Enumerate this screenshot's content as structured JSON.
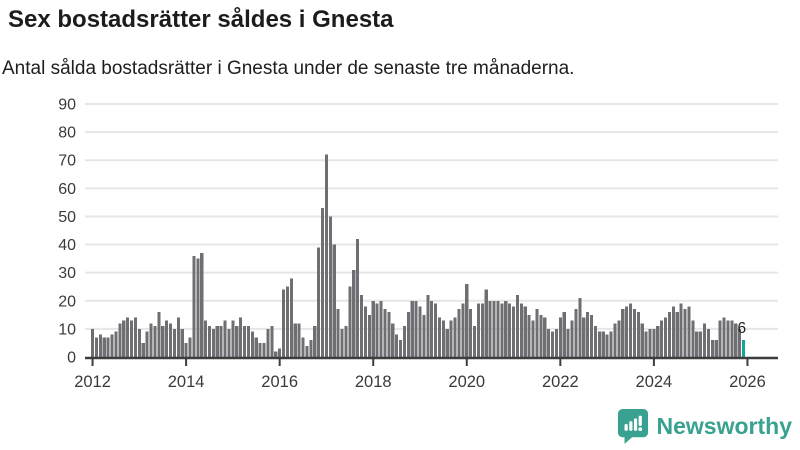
{
  "header": {
    "title": "Sex bostadsrätter såldes i Gnesta",
    "subtitle": "Antal sålda bostadsrätter i Gnesta under de senaste tre månaderna."
  },
  "chart_data": {
    "type": "bar",
    "title": "Sex bostadsrätter såldes i Gnesta",
    "subtitle": "Antal sålda bostadsrätter i Gnesta under de senaste tre månaderna.",
    "frequency": "monthly",
    "x_start": "2012-01",
    "x_end": "2025-12",
    "x_tick_labels": [
      "2012",
      "2014",
      "2016",
      "2018",
      "2020",
      "2022",
      "2024",
      "2026"
    ],
    "y_ticks": [
      0,
      10,
      20,
      30,
      40,
      50,
      60,
      70,
      80,
      90
    ],
    "ylim": [
      0,
      90
    ],
    "grid": true,
    "values": [
      10,
      7,
      8,
      7,
      7,
      8,
      9,
      12,
      13,
      14,
      13,
      14,
      10,
      5,
      9,
      12,
      11,
      16,
      11,
      13,
      12,
      10,
      14,
      10,
      5,
      7,
      36,
      35,
      37,
      13,
      11,
      10,
      11,
      11,
      13,
      10,
      13,
      11,
      14,
      11,
      11,
      9,
      7,
      5,
      5,
      10,
      11,
      2,
      3,
      24,
      25,
      28,
      12,
      12,
      7,
      4,
      6,
      11,
      39,
      53,
      72,
      50,
      40,
      17,
      10,
      11,
      25,
      31,
      42,
      22,
      18,
      15,
      20,
      19,
      20,
      17,
      16,
      12,
      8,
      6,
      11,
      16,
      20,
      20,
      18,
      15,
      22,
      20,
      19,
      14,
      13,
      10,
      13,
      14,
      17,
      19,
      26,
      17,
      11,
      19,
      19,
      24,
      20,
      20,
      20,
      19,
      20,
      19,
      18,
      22,
      19,
      18,
      15,
      13,
      17,
      15,
      14,
      10,
      9,
      10,
      14,
      16,
      10,
      13,
      17,
      21,
      14,
      16,
      15,
      11,
      9,
      9,
      8,
      9,
      12,
      13,
      17,
      18,
      19,
      17,
      16,
      12,
      9,
      10,
      10,
      11,
      13,
      14,
      16,
      18,
      16,
      19,
      17,
      18,
      13,
      9,
      9,
      12,
      10,
      6,
      6,
      13,
      14,
      13,
      13,
      12,
      10,
      6
    ],
    "highlight_last_value": 6,
    "annotation_label": "6",
    "colors": {
      "bar": "#6e6e73",
      "highlight": "#14a39d",
      "grid": "#e6e6e6",
      "axis": "#3d3d3d",
      "tick_text": "#3a3a3a",
      "annotation_text": "#1f1f1f"
    },
    "legend": false
  },
  "footer": {
    "brand": "Newsworthy",
    "brand_color": "#38a18f",
    "icon": "newsworthy-bubble-chart-icon"
  }
}
